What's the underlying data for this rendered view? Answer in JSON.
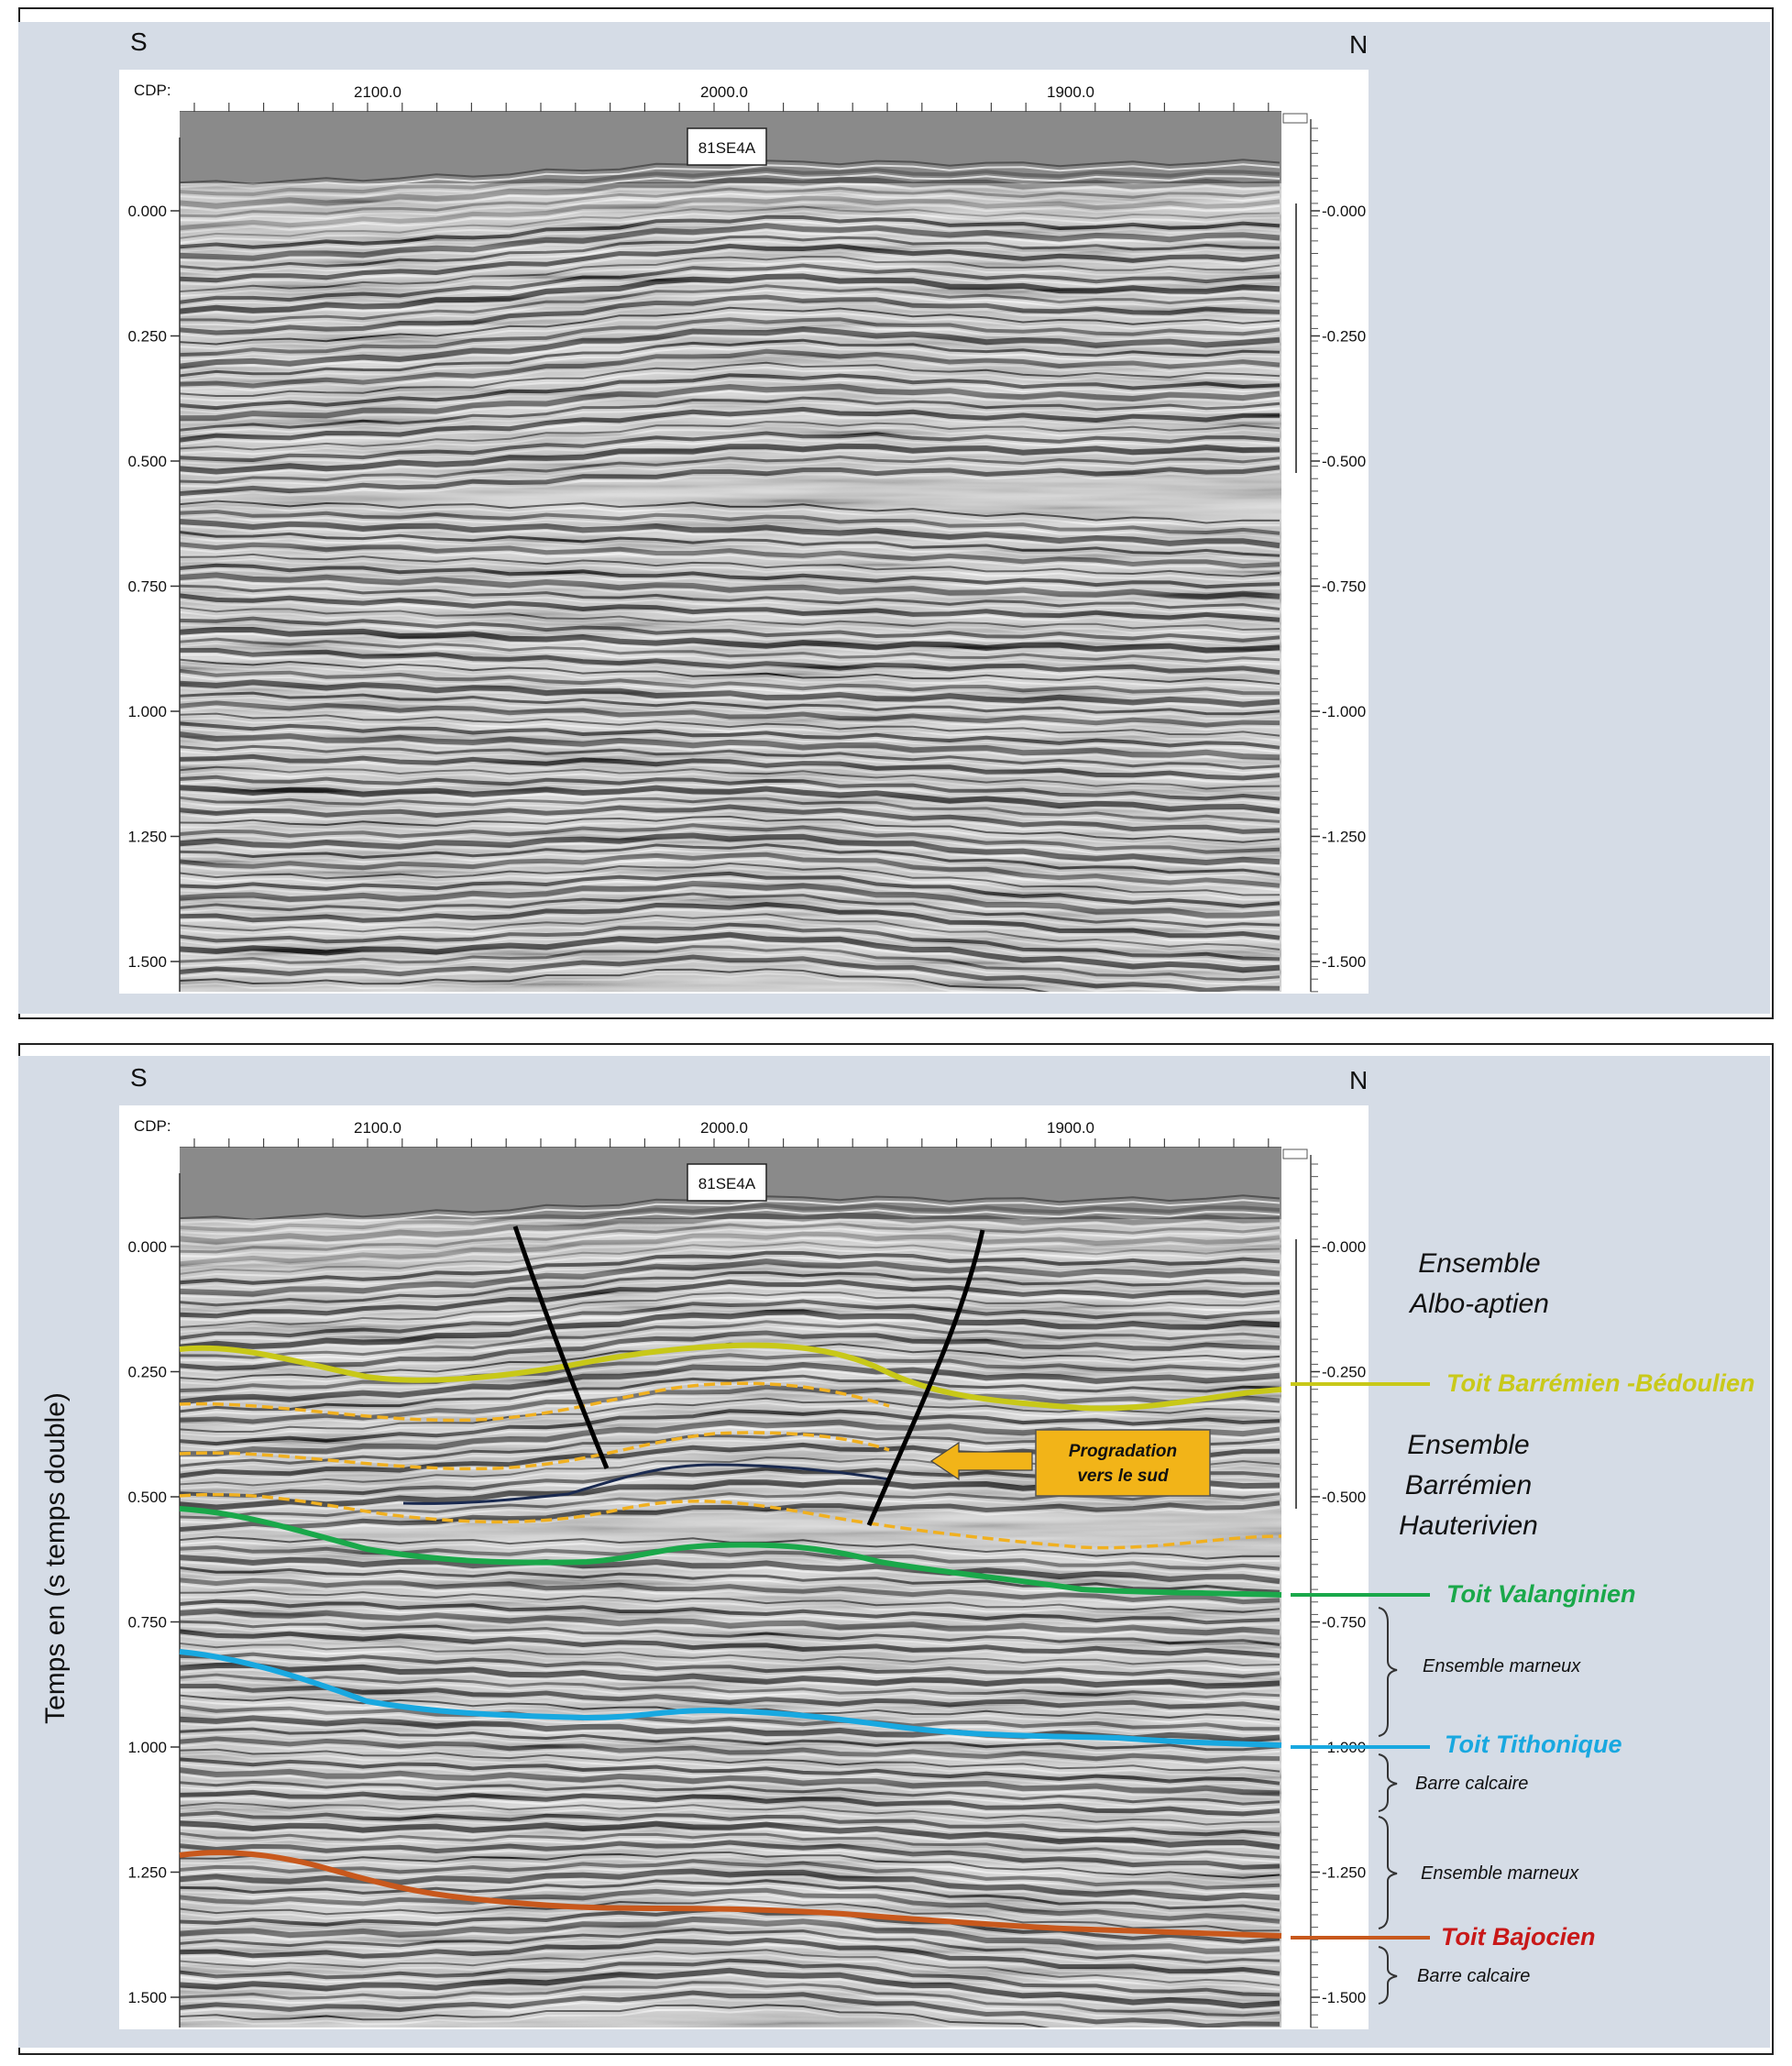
{
  "orientation": {
    "south": "S",
    "north": "N"
  },
  "cdp_axis": {
    "label": "CDP:",
    "ticks": [
      "2100.0",
      "2000.0",
      "1900.0"
    ]
  },
  "line_id": "81SE4A",
  "time_axis": {
    "ticks": [
      "0.000",
      "0.250",
      "0.500",
      "0.750",
      "1.000",
      "1.250",
      "1.500"
    ],
    "right_ticks": [
      "-0.000",
      "-0.250",
      "-0.500",
      "-0.750",
      "-1.000",
      "-1.250",
      "-1.500"
    ],
    "ylabel": "Temps en (s temps double)"
  },
  "interpretation": {
    "ensembles": {
      "albo_aptien": [
        "Ensemble",
        "Albo-aptien"
      ],
      "barremien_hauterivien": [
        "Ensemble",
        "Barrémien",
        "Hauterivien"
      ]
    },
    "horizons": {
      "barremien": "Toit Barrémien -Bédoulien",
      "valanginien": "Toit Valanginien",
      "tithonique": "Toit Tithonique",
      "bajocien": "Toit Bajocien"
    },
    "units": {
      "marneux_1": "Ensemble marneux",
      "calcaire_1": "Barre calcaire",
      "marneux_2": "Ensemble marneux",
      "calcaire_2": "Barre calcaire"
    },
    "progradation": [
      "Progradation",
      "vers le sud"
    ],
    "colors": {
      "barremien": "#c8c818",
      "barremien_label": "#c9c91a",
      "dashed": "#f0b020",
      "valanginien": "#1aa84a",
      "tithonique": "#18a8e0",
      "bajocien": "#c8581c",
      "bajocien_label": "#c81818",
      "downlap": "#1a2a50",
      "fault": "#000000",
      "arrow": "#f2b418",
      "background": "#d5dce6",
      "section_header": "#8a8a8a"
    }
  }
}
